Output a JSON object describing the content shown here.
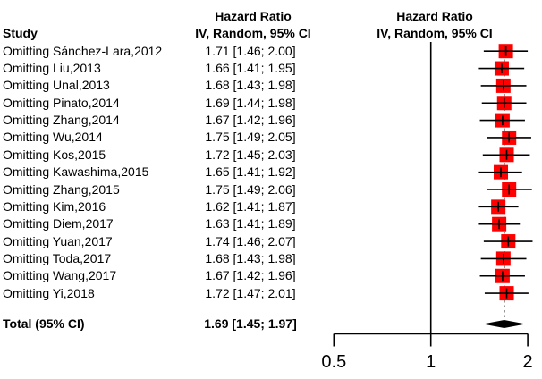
{
  "columns": {
    "study_header": "Study",
    "effect_header_line1": "Hazard Ratio",
    "effect_header_line2": "IV, Random, 95% CI",
    "plot_header_line1": "Hazard Ratio",
    "plot_header_line2": "IV, Random, 95% CI"
  },
  "chart_data": {
    "type": "forest",
    "x_scale": "log",
    "x_ticks": [
      0.5,
      1,
      2
    ],
    "x_tick_labels": [
      "0.5",
      "1",
      "2"
    ],
    "x_range": [
      0.5,
      2
    ],
    "reference_line": 1,
    "square_color": "#FF0000",
    "line_color": "#000000",
    "diamond_color": "#000000",
    "studies": [
      {
        "label": "Omitting Sánchez-Lara,2012",
        "hr": 1.71,
        "ci_low": 1.46,
        "ci_high": 2.0,
        "text": "1.71 [1.46; 2.00]"
      },
      {
        "label": "Omitting Liu,2013",
        "hr": 1.66,
        "ci_low": 1.41,
        "ci_high": 1.95,
        "text": "1.66 [1.41; 1.95]"
      },
      {
        "label": "Omitting Unal,2013",
        "hr": 1.68,
        "ci_low": 1.43,
        "ci_high": 1.98,
        "text": "1.68 [1.43; 1.98]"
      },
      {
        "label": "Omitting Pinato,2014",
        "hr": 1.69,
        "ci_low": 1.44,
        "ci_high": 1.98,
        "text": "1.69 [1.44; 1.98]"
      },
      {
        "label": "Omitting Zhang,2014",
        "hr": 1.67,
        "ci_low": 1.42,
        "ci_high": 1.96,
        "text": "1.67 [1.42; 1.96]"
      },
      {
        "label": "Omitting Wu,2014",
        "hr": 1.75,
        "ci_low": 1.49,
        "ci_high": 2.05,
        "text": "1.75 [1.49; 2.05]"
      },
      {
        "label": "Omitting Kos,2015",
        "hr": 1.72,
        "ci_low": 1.45,
        "ci_high": 2.03,
        "text": "1.72 [1.45; 2.03]"
      },
      {
        "label": "Omitting Kawashima,2015",
        "hr": 1.65,
        "ci_low": 1.41,
        "ci_high": 1.92,
        "text": "1.65 [1.41; 1.92]"
      },
      {
        "label": "Omitting Zhang,2015",
        "hr": 1.75,
        "ci_low": 1.49,
        "ci_high": 2.06,
        "text": "1.75 [1.49; 2.06]"
      },
      {
        "label": "Omitting Kim,2016",
        "hr": 1.62,
        "ci_low": 1.41,
        "ci_high": 1.87,
        "text": "1.62 [1.41; 1.87]"
      },
      {
        "label": "Omitting Diem,2017",
        "hr": 1.63,
        "ci_low": 1.41,
        "ci_high": 1.89,
        "text": "1.63 [1.41; 1.89]"
      },
      {
        "label": "Omitting Yuan,2017",
        "hr": 1.74,
        "ci_low": 1.46,
        "ci_high": 2.07,
        "text": "1.74 [1.46; 2.07]"
      },
      {
        "label": "Omitting Toda,2017",
        "hr": 1.68,
        "ci_low": 1.43,
        "ci_high": 1.98,
        "text": "1.68 [1.43; 1.98]"
      },
      {
        "label": "Omitting Wang,2017",
        "hr": 1.67,
        "ci_low": 1.42,
        "ci_high": 1.96,
        "text": "1.67 [1.42; 1.96]"
      },
      {
        "label": "Omitting Yi,2018",
        "hr": 1.72,
        "ci_low": 1.47,
        "ci_high": 2.01,
        "text": "1.72 [1.47; 2.01]"
      }
    ],
    "total": {
      "label": "Total (95% CI)",
      "hr": 1.69,
      "ci_low": 1.45,
      "ci_high": 1.97,
      "text": "1.69 [1.45; 1.97]"
    }
  }
}
